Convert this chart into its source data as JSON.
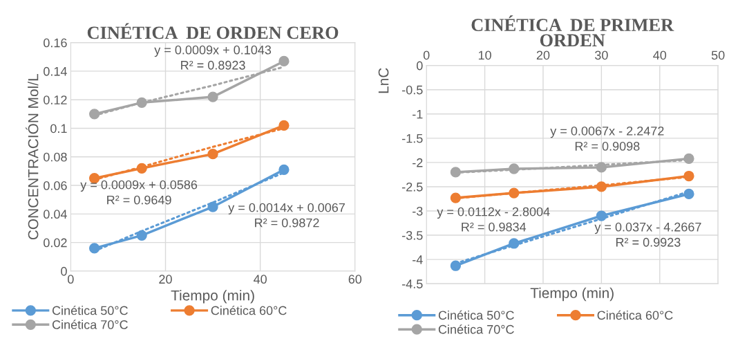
{
  "chart_data": [
    {
      "type": "line",
      "title": "CINÉTICA  DE ORDEN CERO",
      "xlabel": "Tiempo (min)",
      "ylabel": "CONCENTRACIÓN Mol/L",
      "x": [
        5,
        15,
        30,
        45
      ],
      "xlim": [
        0,
        60
      ],
      "xticks": [
        0,
        20,
        40,
        60
      ],
      "ylim": [
        0,
        0.16
      ],
      "yticks": [
        0,
        0.02,
        0.04,
        0.06,
        0.08,
        0.1,
        0.12,
        0.14,
        0.16
      ],
      "grid": true,
      "legend": "bottom",
      "marker": "circle",
      "line_style": "solid",
      "series": [
        {
          "name": "Cinética 50°C",
          "color": "#5b9bd5",
          "values": [
            0.016,
            0.025,
            0.045,
            0.071
          ]
        },
        {
          "name": "Cinética 60°C",
          "color": "#ed7d31",
          "values": [
            0.065,
            0.072,
            0.082,
            0.102
          ]
        },
        {
          "name": "Cinética 70°C",
          "color": "#a5a5a5",
          "values": [
            0.11,
            0.118,
            0.122,
            0.147
          ]
        },
        {
          "type": "line",
          "color": "#5b9bd5",
          "values": [
            0.014,
            0.028,
            0.048,
            0.069
          ],
          "line_style": "dotted",
          "marker": "none"
        },
        {
          "type": "line",
          "color": "#ed7d31",
          "values": [
            0.064,
            0.073,
            0.087,
            0.1
          ],
          "line_style": "dotted",
          "marker": "none"
        },
        {
          "type": "line",
          "color": "#a5a5a5",
          "values": [
            0.109,
            0.118,
            0.13,
            0.143
          ],
          "line_style": "dotted",
          "marker": "none"
        }
      ],
      "annotations": [
        "y = 0.0009x + 0.1043\nR² = 0.8923",
        "y = 0.0009x + 0.0586\nR² = 0.9649",
        "y = 0.0014x + 0.0067\nR² = 0.9872"
      ]
    },
    {
      "type": "line",
      "title": "CINÉTICA  DE PRIMER ORDEN",
      "xlabel": "Tiempo (min)",
      "ylabel": "LnC",
      "x": [
        5,
        15,
        30,
        45
      ],
      "xlim": [
        0,
        50
      ],
      "xticks": [
        0,
        10,
        20,
        30,
        40,
        50
      ],
      "ylim": [
        -4.5,
        0
      ],
      "yticks": [
        -4.5,
        -4,
        -3.5,
        -3,
        -2.5,
        -2,
        -1.5,
        -1,
        -0.5,
        0
      ],
      "grid": true,
      "legend": "bottom",
      "marker": "circle",
      "line_style": "solid",
      "series": [
        {
          "name": "Cinética 50°C",
          "color": "#5b9bd5",
          "values": [
            -4.13,
            -3.67,
            -3.1,
            -2.65
          ]
        },
        {
          "name": "Cinética 60°C",
          "color": "#ed7d31",
          "values": [
            -2.73,
            -2.63,
            -2.5,
            -2.28
          ]
        },
        {
          "name": "Cinética 70°C",
          "color": "#a5a5a5",
          "values": [
            -2.2,
            -2.13,
            -2.1,
            -1.92
          ]
        },
        {
          "type": "line",
          "color": "#5b9bd5",
          "values": [
            -4.08,
            -3.71,
            -3.16,
            -2.6
          ],
          "line_style": "dotted",
          "marker": "none"
        },
        {
          "type": "line",
          "color": "#ed7d31",
          "values": [
            -2.74,
            -2.63,
            -2.47,
            -2.3
          ],
          "line_style": "dotted",
          "marker": "none"
        },
        {
          "type": "line",
          "color": "#a5a5a5",
          "values": [
            -2.21,
            -2.15,
            -2.05,
            -1.95
          ],
          "line_style": "dotted",
          "marker": "none"
        }
      ],
      "annotations": [
        "y = 0.0067x - 2.2472\nR² = 0.9098",
        "y = 0.0112x - 2.8004\nR² = 0.9834",
        "y = 0.037x - 4.2667\nR² = 0.9923"
      ]
    }
  ]
}
